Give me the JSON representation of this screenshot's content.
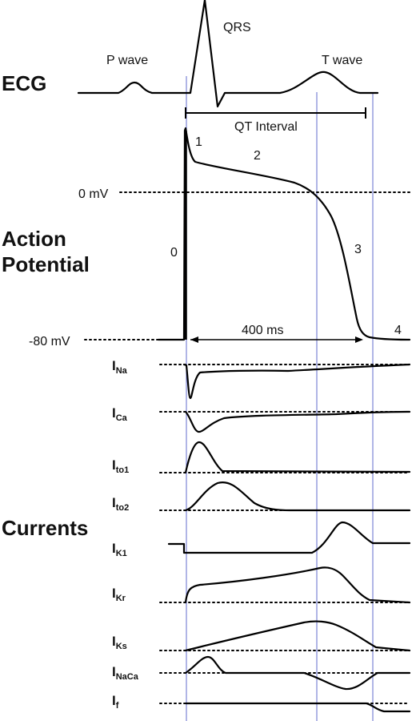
{
  "ecg": {
    "label": "ECG",
    "p_wave": "P wave",
    "qrs": "QRS",
    "t_wave": "T wave",
    "qt_interval": "QT Interval"
  },
  "action_potential": {
    "label_line1": "Action",
    "label_line2": "Potential",
    "zero_mv": "0 mV",
    "minus80_mv": "-80 mV",
    "phases": [
      "0",
      "1",
      "2",
      "3",
      "4"
    ],
    "duration": "400 ms"
  },
  "currents": {
    "label": "Currents",
    "items": [
      {
        "main": "I",
        "sub": "Na"
      },
      {
        "main": "I",
        "sub": "Ca"
      },
      {
        "main": "I",
        "sub": "to1"
      },
      {
        "main": "I",
        "sub": "to2"
      },
      {
        "main": "I",
        "sub": "K1"
      },
      {
        "main": "I",
        "sub": "Kr"
      },
      {
        "main": "I",
        "sub": "Ks"
      },
      {
        "main": "I",
        "sub": "NaCa"
      },
      {
        "main": "I",
        "sub": "f"
      }
    ]
  },
  "colors": {
    "trace": "#000000",
    "marker_lines": "#7b84d6"
  }
}
